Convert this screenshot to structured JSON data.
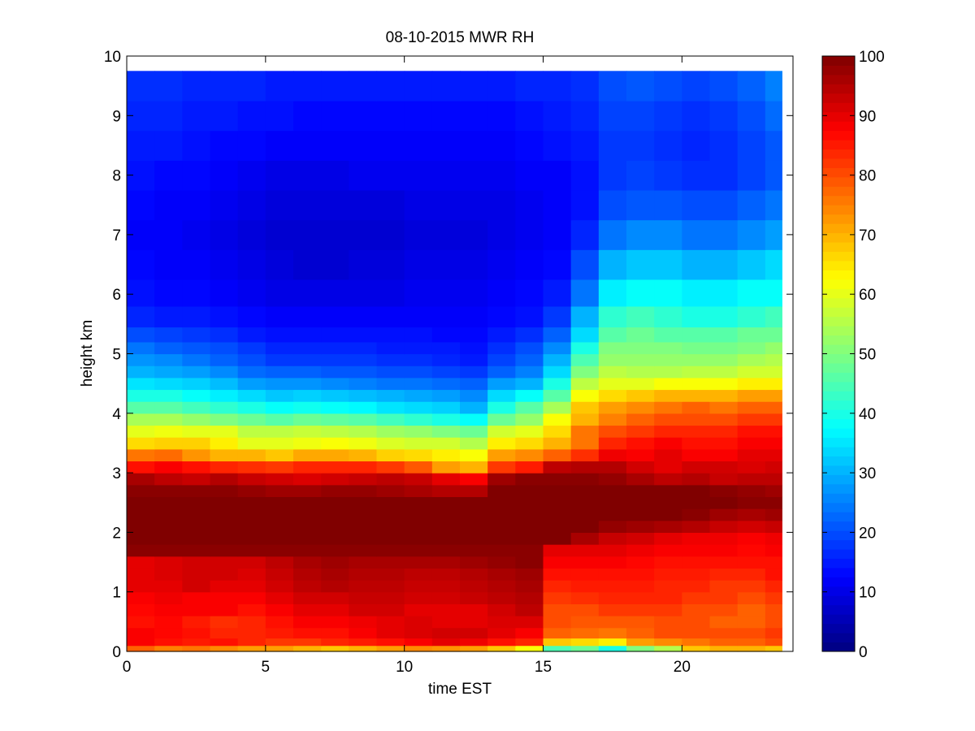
{
  "chart_data": {
    "type": "heatmap",
    "title": "08-10-2015 MWR RH",
    "xlabel": "time EST",
    "ylabel": "height km",
    "xlim": [
      0,
      24
    ],
    "ylim": [
      0,
      10
    ],
    "xticks": [
      0,
      5,
      10,
      15,
      20
    ],
    "yticks": [
      0,
      1,
      2,
      3,
      4,
      5,
      6,
      7,
      8,
      9,
      10
    ],
    "colorbar": {
      "colormap": "jet",
      "range": [
        0,
        100
      ],
      "ticks": [
        0,
        10,
        20,
        30,
        40,
        50,
        60,
        70,
        80,
        90,
        100
      ]
    },
    "x": [
      0.5,
      1.5,
      2.5,
      3.5,
      4.5,
      5.5,
      6.5,
      7.5,
      8.5,
      9.5,
      10.5,
      11.5,
      12.5,
      13.5,
      14.5,
      15.5,
      16.5,
      17.5,
      18.5,
      19.5,
      20.5,
      21.5,
      22.5,
      23.5
    ],
    "heights": [
      0.05,
      0.15,
      0.3,
      0.5,
      0.7,
      0.9,
      1.1,
      1.3,
      1.5,
      1.7,
      1.9,
      2.1,
      2.3,
      2.5,
      2.7,
      2.9,
      3.1,
      3.3,
      3.5,
      3.7,
      3.9,
      4.1,
      4.3,
      4.5,
      4.7,
      4.9,
      5.1,
      5.3,
      5.6,
      6.0,
      6.5,
      7.0,
      7.5,
      8.0,
      8.5,
      9.0,
      9.5
    ],
    "rh": [
      [
        78,
        75,
        76,
        74,
        72,
        72,
        70,
        68,
        70,
        72,
        74,
        73,
        72,
        68,
        62,
        45,
        48,
        40,
        50,
        55,
        68,
        70,
        70,
        68
      ],
      [
        88,
        86,
        85,
        86,
        84,
        82,
        82,
        84,
        85,
        86,
        88,
        90,
        89,
        86,
        84,
        68,
        66,
        64,
        72,
        74,
        76,
        78,
        78,
        80
      ],
      [
        88,
        87,
        86,
        84,
        84,
        85,
        86,
        86,
        88,
        90,
        91,
        92,
        92,
        90,
        88,
        78,
        77,
        76,
        78,
        80,
        80,
        80,
        80,
        82
      ],
      [
        86,
        87,
        85,
        83,
        84,
        86,
        88,
        88,
        89,
        90,
        91,
        90,
        90,
        91,
        91,
        80,
        79,
        79,
        79,
        80,
        80,
        78,
        78,
        80
      ],
      [
        87,
        88,
        88,
        88,
        86,
        88,
        90,
        90,
        92,
        92,
        90,
        90,
        90,
        92,
        94,
        80,
        80,
        82,
        82,
        82,
        80,
        80,
        78,
        80
      ],
      [
        88,
        89,
        88,
        88,
        88,
        90,
        92,
        92,
        93,
        93,
        92,
        92,
        93,
        94,
        95,
        82,
        83,
        84,
        84,
        84,
        82,
        82,
        80,
        82
      ],
      [
        90,
        90,
        92,
        90,
        90,
        92,
        94,
        95,
        94,
        94,
        93,
        93,
        94,
        95,
        96,
        84,
        85,
        85,
        85,
        84,
        84,
        82,
        82,
        84
      ],
      [
        90,
        91,
        92,
        92,
        91,
        93,
        95,
        96,
        95,
        95,
        94,
        94,
        95,
        96,
        97,
        86,
        86,
        86,
        86,
        85,
        85,
        84,
        84,
        86
      ],
      [
        90,
        91,
        92,
        92,
        92,
        94,
        96,
        97,
        96,
        96,
        96,
        96,
        97,
        98,
        99,
        88,
        88,
        88,
        87,
        86,
        86,
        86,
        86,
        86
      ],
      [
        99,
        99,
        99,
        99,
        99,
        99,
        99,
        99,
        99,
        99,
        99,
        99,
        99,
        99,
        99,
        90,
        90,
        90,
        89,
        88,
        88,
        88,
        87,
        88
      ],
      [
        100,
        100,
        100,
        100,
        100,
        100,
        100,
        100,
        100,
        100,
        100,
        100,
        100,
        100,
        100,
        100,
        96,
        93,
        92,
        90,
        89,
        89,
        88,
        89
      ],
      [
        100,
        100,
        100,
        100,
        100,
        100,
        100,
        100,
        100,
        100,
        100,
        100,
        100,
        100,
        100,
        100,
        100,
        98,
        97,
        96,
        95,
        93,
        92,
        93
      ],
      [
        100,
        100,
        100,
        100,
        100,
        100,
        100,
        100,
        100,
        100,
        100,
        100,
        100,
        100,
        100,
        100,
        100,
        100,
        100,
        100,
        99,
        97,
        96,
        97
      ],
      [
        100,
        100,
        100,
        100,
        100,
        100,
        100,
        100,
        100,
        100,
        100,
        100,
        100,
        100,
        100,
        100,
        100,
        100,
        100,
        100,
        100,
        100,
        99,
        99
      ],
      [
        99,
        99,
        99,
        99,
        98,
        97,
        97,
        98,
        98,
        97,
        96,
        95,
        95,
        100,
        100,
        100,
        100,
        100,
        100,
        100,
        100,
        99,
        98,
        97
      ],
      [
        96,
        94,
        93,
        95,
        93,
        92,
        91,
        92,
        93,
        94,
        93,
        90,
        88,
        97,
        99,
        99,
        99,
        98,
        96,
        94,
        95,
        93,
        94,
        94
      ],
      [
        86,
        88,
        86,
        84,
        83,
        82,
        84,
        84,
        84,
        82,
        79,
        72,
        70,
        82,
        85,
        94,
        95,
        95,
        92,
        90,
        92,
        92,
        91,
        92
      ],
      [
        76,
        77,
        73,
        70,
        70,
        68,
        71,
        71,
        70,
        67,
        66,
        64,
        62,
        72,
        74,
        78,
        83,
        89,
        88,
        90,
        88,
        88,
        90,
        90
      ],
      [
        66,
        67,
        67,
        64,
        60,
        60,
        61,
        62,
        61,
        59,
        58,
        58,
        55,
        64,
        66,
        70,
        76,
        84,
        86,
        88,
        86,
        86,
        88,
        88
      ],
      [
        60,
        61,
        60,
        60,
        56,
        56,
        57,
        56,
        55,
        53,
        52,
        50,
        48,
        58,
        60,
        66,
        76,
        80,
        82,
        84,
        84,
        84,
        86,
        86
      ],
      [
        54,
        54,
        52,
        50,
        48,
        46,
        48,
        47,
        46,
        44,
        42,
        40,
        38,
        48,
        52,
        62,
        70,
        75,
        78,
        80,
        80,
        80,
        82,
        82
      ],
      [
        46,
        46,
        44,
        42,
        40,
        38,
        39,
        38,
        37,
        35,
        34,
        33,
        30,
        40,
        46,
        54,
        68,
        72,
        74,
        76,
        78,
        76,
        78,
        78
      ],
      [
        40,
        40,
        38,
        36,
        34,
        32,
        33,
        32,
        31,
        30,
        29,
        28,
        26,
        34,
        38,
        46,
        62,
        66,
        68,
        70,
        70,
        70,
        72,
        72
      ],
      [
        35,
        34,
        33,
        31,
        28,
        27,
        27,
        26,
        25,
        24,
        24,
        23,
        22,
        28,
        30,
        40,
        56,
        60,
        60,
        62,
        62,
        62,
        64,
        64
      ],
      [
        30,
        29,
        28,
        26,
        23,
        22,
        22,
        21,
        21,
        20,
        20,
        19,
        18,
        22,
        25,
        34,
        50,
        56,
        55,
        55,
        56,
        56,
        58,
        58
      ],
      [
        27,
        26,
        24,
        22,
        20,
        18,
        18,
        18,
        18,
        17,
        17,
        16,
        15,
        19,
        22,
        30,
        45,
        52,
        52,
        52,
        52,
        52,
        54,
        55
      ],
      [
        24,
        22,
        21,
        20,
        18,
        16,
        16,
        16,
        16,
        15,
        15,
        15,
        14,
        17,
        20,
        26,
        40,
        50,
        50,
        50,
        49,
        49,
        50,
        52
      ],
      [
        20,
        19,
        18,
        17,
        15,
        14,
        14,
        14,
        14,
        14,
        14,
        13,
        13,
        15,
        17,
        22,
        34,
        46,
        48,
        46,
        46,
        46,
        48,
        48
      ],
      [
        16,
        15,
        15,
        14,
        13,
        12,
        12,
        12,
        12,
        12,
        12,
        12,
        12,
        13,
        14,
        18,
        30,
        42,
        44,
        42,
        40,
        40,
        42,
        44
      ],
      [
        14,
        13,
        13,
        12,
        11,
        10,
        10,
        10,
        10,
        10,
        11,
        11,
        11,
        12,
        13,
        15,
        24,
        36,
        38,
        38,
        36,
        36,
        38,
        38
      ],
      [
        13,
        12,
        12,
        11,
        10,
        9,
        8,
        8,
        9,
        9,
        10,
        10,
        10,
        11,
        12,
        13,
        20,
        30,
        32,
        32,
        30,
        30,
        32,
        34
      ],
      [
        12,
        12,
        11,
        10,
        9,
        8,
        8,
        8,
        8,
        8,
        9,
        9,
        9,
        10,
        11,
        12,
        16,
        24,
        26,
        26,
        24,
        24,
        26,
        28
      ],
      [
        13,
        12,
        12,
        11,
        10,
        9,
        9,
        9,
        9,
        9,
        10,
        10,
        10,
        10,
        11,
        12,
        14,
        20,
        21,
        21,
        20,
        20,
        22,
        24
      ],
      [
        14,
        13,
        13,
        12,
        11,
        10,
        10,
        10,
        11,
        11,
        11,
        11,
        11,
        11,
        12,
        12,
        14,
        18,
        19,
        18,
        17,
        17,
        19,
        21
      ],
      [
        15,
        15,
        14,
        13,
        13,
        12,
        12,
        12,
        12,
        12,
        12,
        12,
        12,
        12,
        13,
        14,
        15,
        18,
        18,
        17,
        16,
        17,
        19,
        21
      ],
      [
        16,
        16,
        15,
        15,
        14,
        14,
        13,
        13,
        13,
        13,
        13,
        13,
        13,
        13,
        14,
        15,
        16,
        19,
        19,
        18,
        17,
        18,
        20,
        23
      ],
      [
        17,
        17,
        16,
        16,
        16,
        15,
        15,
        15,
        15,
        15,
        15,
        15,
        15,
        15,
        16,
        16,
        17,
        20,
        21,
        20,
        19,
        20,
        22,
        25
      ]
    ]
  }
}
